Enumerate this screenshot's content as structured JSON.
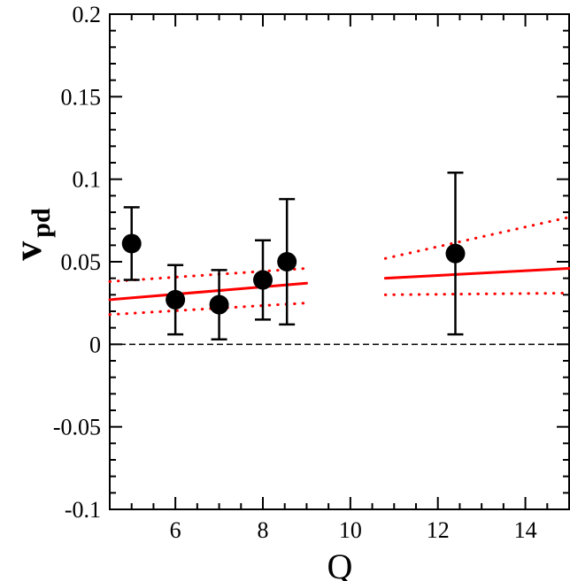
{
  "chart_data": {
    "type": "scatter",
    "xlabel": "Q",
    "ylabel": "v",
    "ylabel_subscript": "pd",
    "xlim": [
      4.5,
      15
    ],
    "ylim": [
      -0.1,
      0.2
    ],
    "x_ticks": [
      6,
      8,
      10,
      12,
      14
    ],
    "x_tick_labels": [
      "6",
      "8",
      "10",
      "12",
      "14"
    ],
    "y_ticks": [
      -0.1,
      -0.05,
      0,
      0.05,
      0.1,
      0.15,
      0.2
    ],
    "y_tick_labels": [
      "-0.1",
      "-0.05",
      "0",
      "0.05",
      "0.1",
      "0.15",
      "0.2"
    ],
    "x_minor_step": 0.5,
    "y_minor_step": 0.01,
    "grid": false,
    "reference_line": {
      "y": 0,
      "style": "dashed",
      "color": "#000000"
    },
    "points": {
      "color": "#000000",
      "data": [
        {
          "x": 5.0,
          "y": 0.061,
          "ylow": 0.039,
          "yhigh": 0.083
        },
        {
          "x": 6.0,
          "y": 0.027,
          "ylow": 0.006,
          "yhigh": 0.048
        },
        {
          "x": 7.0,
          "y": 0.024,
          "ylow": 0.003,
          "yhigh": 0.045
        },
        {
          "x": 8.0,
          "y": 0.039,
          "ylow": 0.015,
          "yhigh": 0.063
        },
        {
          "x": 8.55,
          "y": 0.05,
          "ylow": 0.012,
          "yhigh": 0.088
        },
        {
          "x": 12.4,
          "y": 0.055,
          "ylow": 0.006,
          "yhigh": 0.104
        }
      ]
    },
    "fit_lines": [
      {
        "color": "#ff0000",
        "central": [
          [
            4.5,
            0.027
          ],
          [
            9.0,
            0.037
          ]
        ],
        "upper": [
          [
            4.5,
            0.038
          ],
          [
            9.0,
            0.046
          ]
        ],
        "lower": [
          [
            4.5,
            0.018
          ],
          [
            9.0,
            0.025
          ]
        ]
      },
      {
        "color": "#ff0000",
        "central": [
          [
            10.8,
            0.04
          ],
          [
            15.0,
            0.046
          ]
        ],
        "upper": [
          [
            10.8,
            0.052
          ],
          [
            15.0,
            0.077
          ]
        ],
        "lower": [
          [
            10.8,
            0.03
          ],
          [
            15.0,
            0.031
          ]
        ]
      }
    ]
  }
}
